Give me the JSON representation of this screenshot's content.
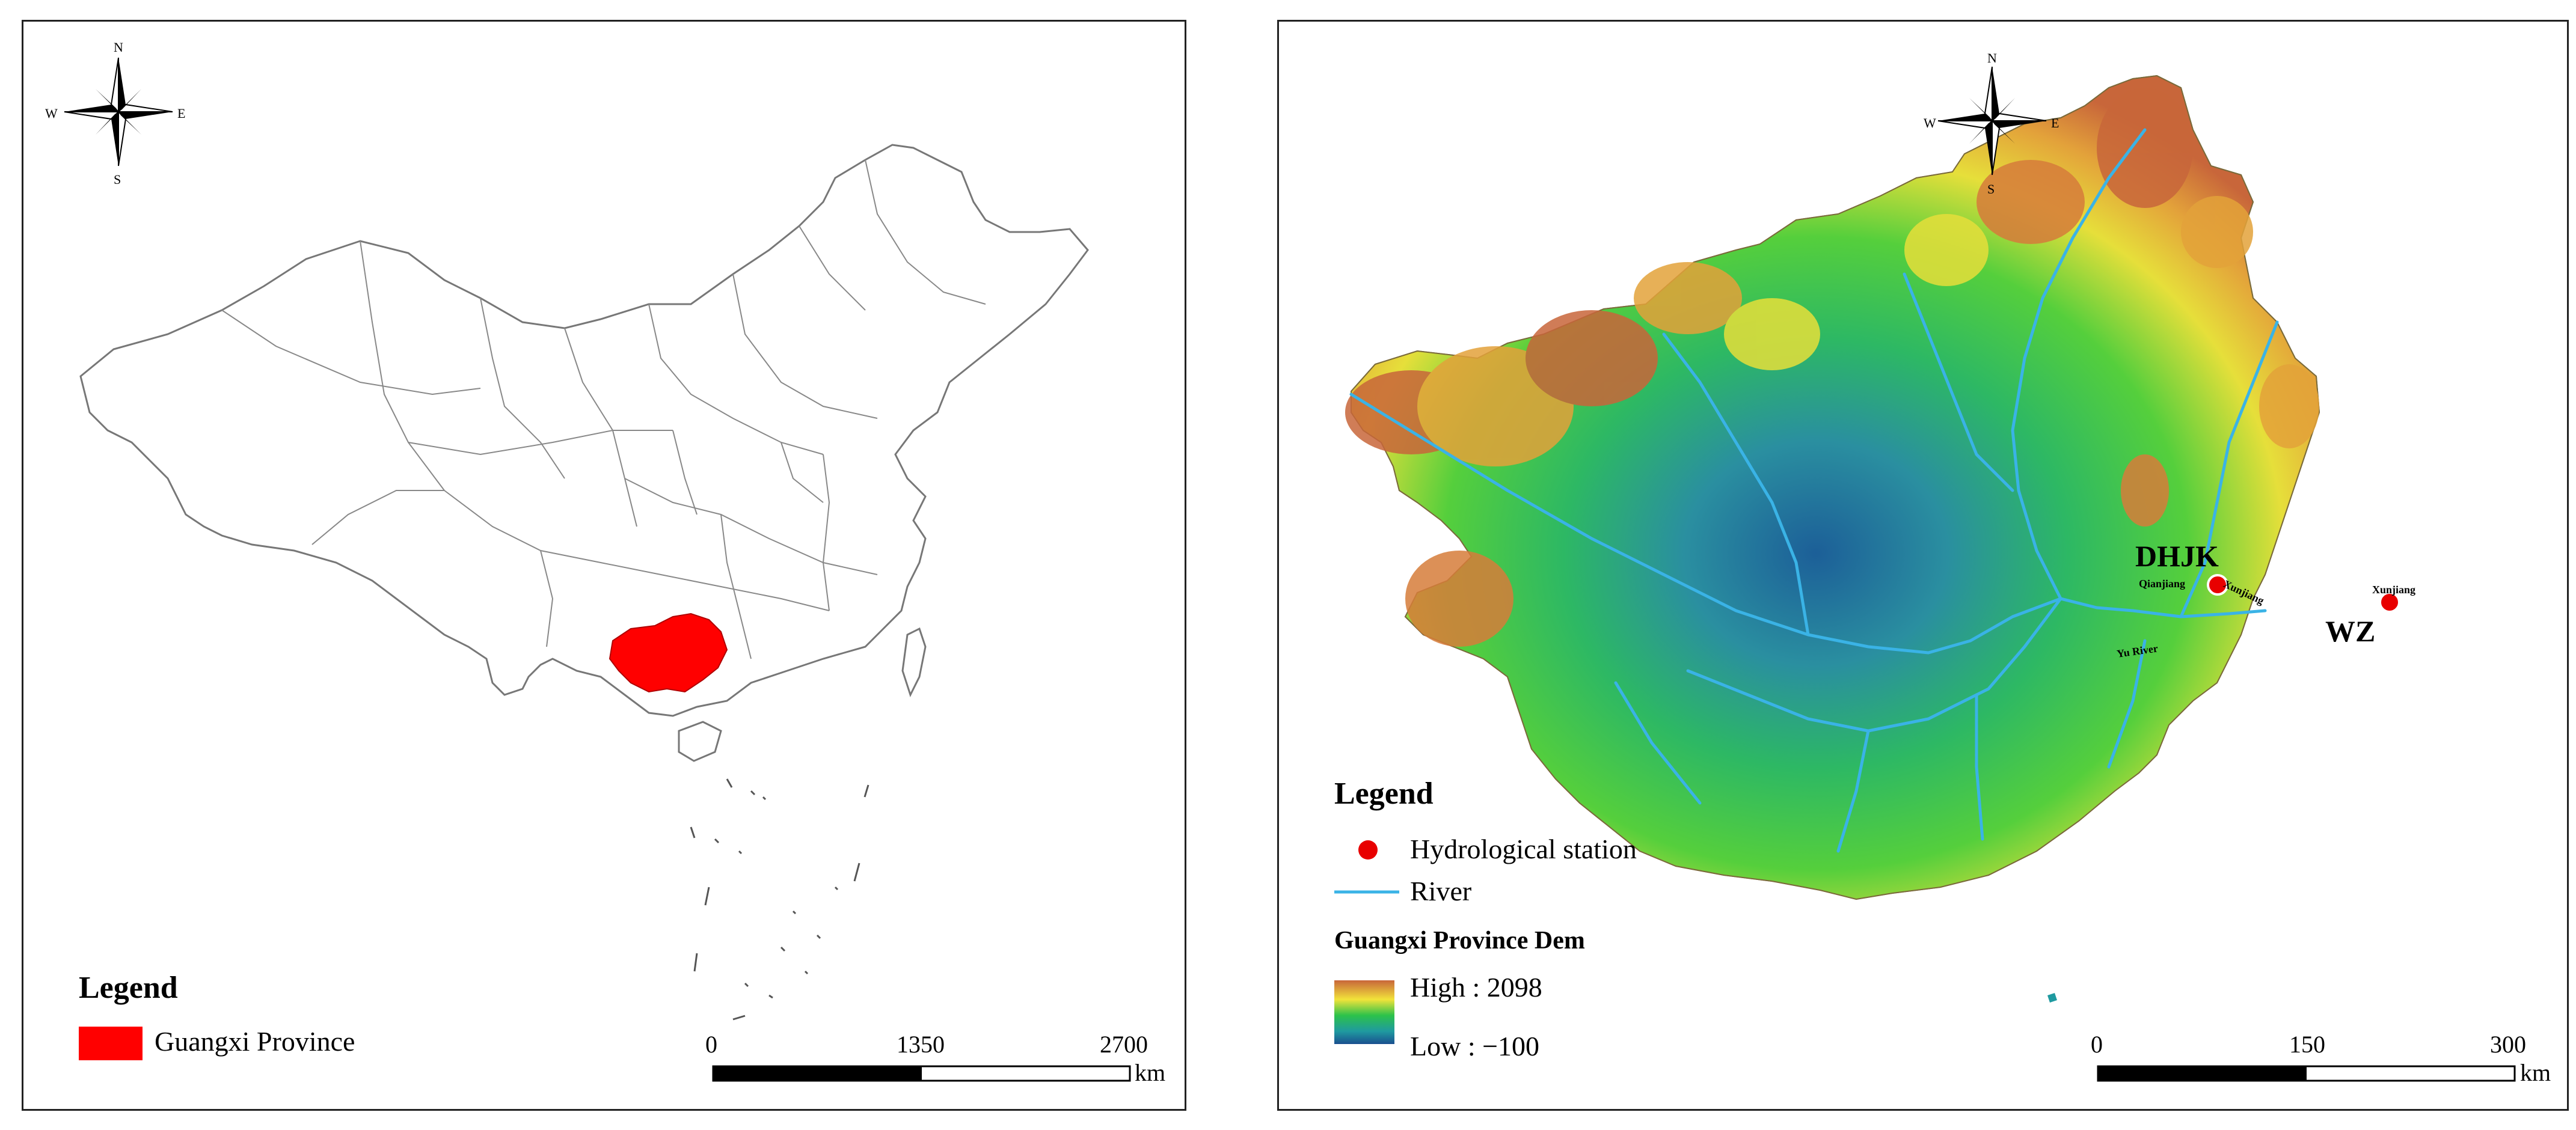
{
  "colors": {
    "guangxi_fill": "#ff0000",
    "river": "#3ab3e6",
    "station": "#e80000",
    "dem_high": "#c8663a",
    "dem_mid_yellow": "#f2e33a",
    "dem_green": "#2cc24a",
    "dem_low": "#1a4f8f"
  },
  "left_map": {
    "compass": {
      "n": "N",
      "s": "S",
      "e": "E",
      "w": "W"
    },
    "legend": {
      "title": "Legend",
      "items": [
        {
          "label": "Guangxi Province",
          "color": "#ff0000",
          "icon": "red-rectangle-swatch"
        }
      ]
    },
    "scale_bar": {
      "ticks": [
        "0",
        "1350",
        "2700"
      ],
      "unit": "km"
    }
  },
  "right_map": {
    "compass": {
      "n": "N",
      "s": "S",
      "e": "E",
      "w": "W"
    },
    "stations": [
      {
        "code": "DHJK"
      },
      {
        "code": "WZ"
      }
    ],
    "river_labels": [
      "Qianjiang",
      "Xunjiang",
      "Xunjiang",
      "Yu River"
    ],
    "legend": {
      "title": "Legend",
      "station_label": "Hydrological station",
      "river_label": "River",
      "dem_title": "Guangxi Province Dem",
      "dem_high": "High : 2098",
      "dem_low": "Low : −100"
    },
    "scale_bar": {
      "ticks": [
        "0",
        "150",
        "300"
      ],
      "unit": "km"
    }
  }
}
